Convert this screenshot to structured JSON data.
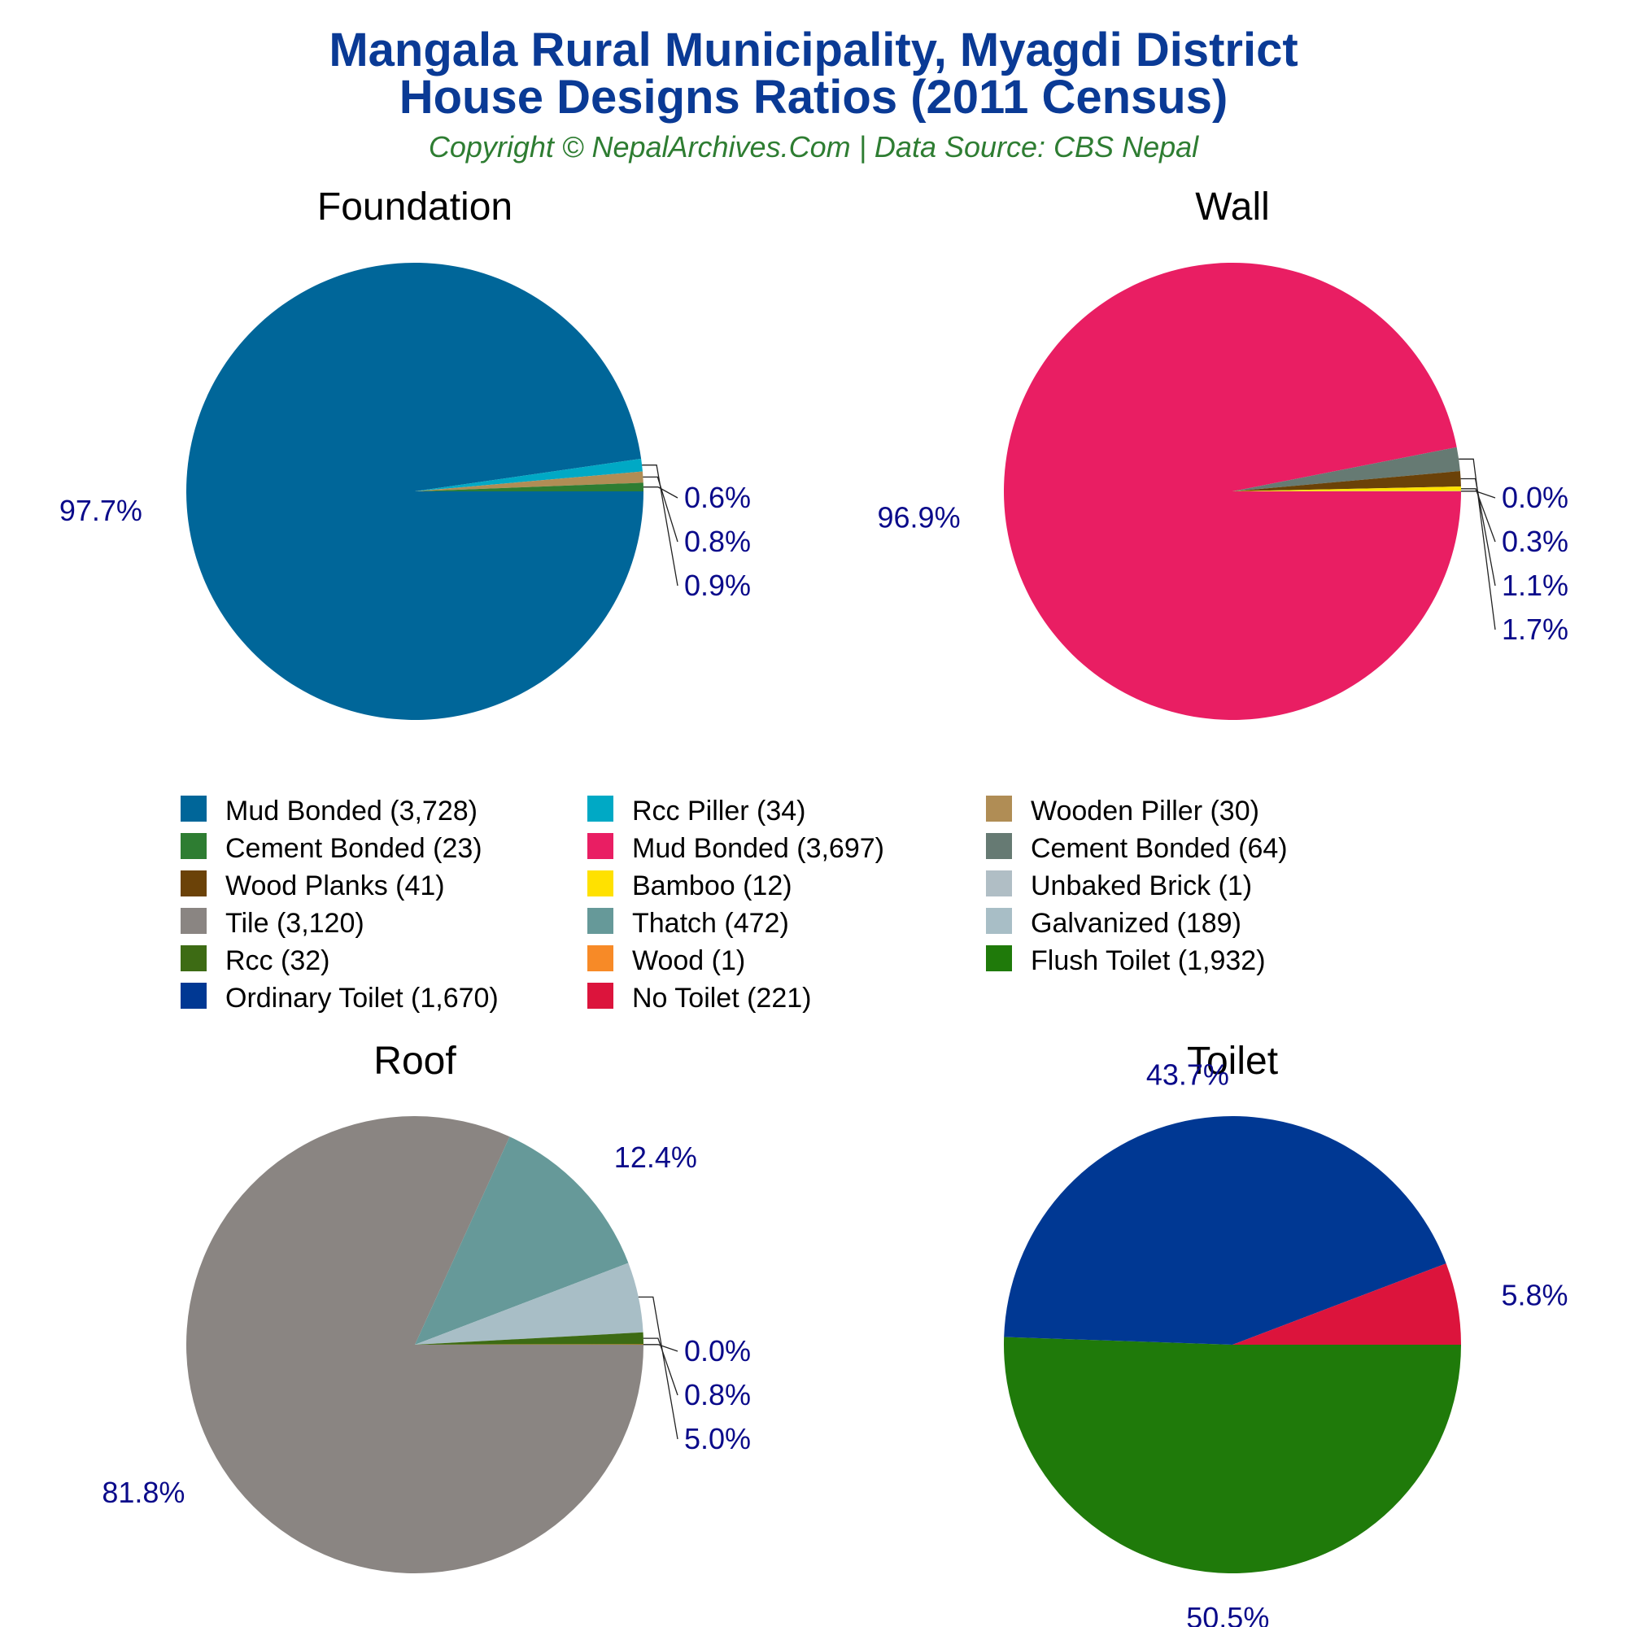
{
  "title_line1": "Mangala Rural Municipality, Myagdi District",
  "title_line2": "House Designs Ratios (2011 Census)",
  "subtitle": "Copyright © NepalArchives.Com | Data Source: CBS Nepal",
  "label_color": "#0a0a8a",
  "chart_data": [
    {
      "type": "pie",
      "title": "Foundation",
      "slices": [
        {
          "name": "Mud Bonded",
          "value": 3728,
          "color": "#006699",
          "pct": "97.7%"
        },
        {
          "name": "Rcc Piller",
          "value": 34,
          "color": "#00a9c5",
          "pct": "0.9%"
        },
        {
          "name": "Wooden Piller",
          "value": 30,
          "color": "#b08d55",
          "pct": "0.8%"
        },
        {
          "name": "Cement Bonded",
          "value": 23,
          "color": "#2e7d32",
          "pct": "0.6%"
        }
      ]
    },
    {
      "type": "pie",
      "title": "Wall",
      "slices": [
        {
          "name": "Mud Bonded",
          "value": 3697,
          "color": "#e91e63",
          "pct": "96.9%"
        },
        {
          "name": "Cement Bonded",
          "value": 64,
          "color": "#667a73",
          "pct": "1.7%"
        },
        {
          "name": "Wood Planks",
          "value": 41,
          "color": "#6b4208",
          "pct": "1.1%"
        },
        {
          "name": "Bamboo",
          "value": 12,
          "color": "#ffe100",
          "pct": "0.3%"
        },
        {
          "name": "Unbaked Brick",
          "value": 1,
          "color": "#b0bec5",
          "pct": "0.0%"
        }
      ]
    },
    {
      "type": "pie",
      "title": "Roof",
      "slices": [
        {
          "name": "Tile",
          "value": 3120,
          "color": "#8a8582",
          "pct": "81.8%"
        },
        {
          "name": "Thatch",
          "value": 472,
          "color": "#669999",
          "pct": "12.4%"
        },
        {
          "name": "Galvanized",
          "value": 189,
          "color": "#a8bec6",
          "pct": "5.0%"
        },
        {
          "name": "Rcc",
          "value": 32,
          "color": "#3d6b14",
          "pct": "0.8%"
        },
        {
          "name": "Wood",
          "value": 1,
          "color": "#f78a27",
          "pct": "0.0%"
        }
      ]
    },
    {
      "type": "pie",
      "title": "Toilet",
      "slices": [
        {
          "name": "Flush Toilet",
          "value": 1932,
          "color": "#1f7a0a",
          "pct": "50.5%"
        },
        {
          "name": "Ordinary Toilet",
          "value": 1670,
          "color": "#003893",
          "pct": "43.7%"
        },
        {
          "name": "No Toilet",
          "value": 221,
          "color": "#dc143c",
          "pct": "5.8%"
        }
      ]
    }
  ],
  "legend": [
    {
      "label": "Mud Bonded (3,728)",
      "color": "#006699"
    },
    {
      "label": "Rcc Piller (34)",
      "color": "#00a9c5"
    },
    {
      "label": "Wooden Piller (30)",
      "color": "#b08d55"
    },
    {
      "label": "Cement Bonded (23)",
      "color": "#2e7d32"
    },
    {
      "label": "Mud Bonded (3,697)",
      "color": "#e91e63"
    },
    {
      "label": "Cement Bonded (64)",
      "color": "#667a73"
    },
    {
      "label": "Wood Planks (41)",
      "color": "#6b4208"
    },
    {
      "label": "Bamboo (12)",
      "color": "#ffe100"
    },
    {
      "label": "Unbaked Brick (1)",
      "color": "#b0bec5"
    },
    {
      "label": "Tile (3,120)",
      "color": "#8a8582"
    },
    {
      "label": "Thatch (472)",
      "color": "#669999"
    },
    {
      "label": "Galvanized (189)",
      "color": "#a8bec6"
    },
    {
      "label": "Rcc (32)",
      "color": "#3d6b14"
    },
    {
      "label": "Wood (1)",
      "color": "#f78a27"
    },
    {
      "label": "Flush Toilet (1,932)",
      "color": "#1f7a0a"
    },
    {
      "label": "Ordinary Toilet (1,670)",
      "color": "#003893"
    },
    {
      "label": "No Toilet (221)",
      "color": "#dc143c"
    }
  ]
}
